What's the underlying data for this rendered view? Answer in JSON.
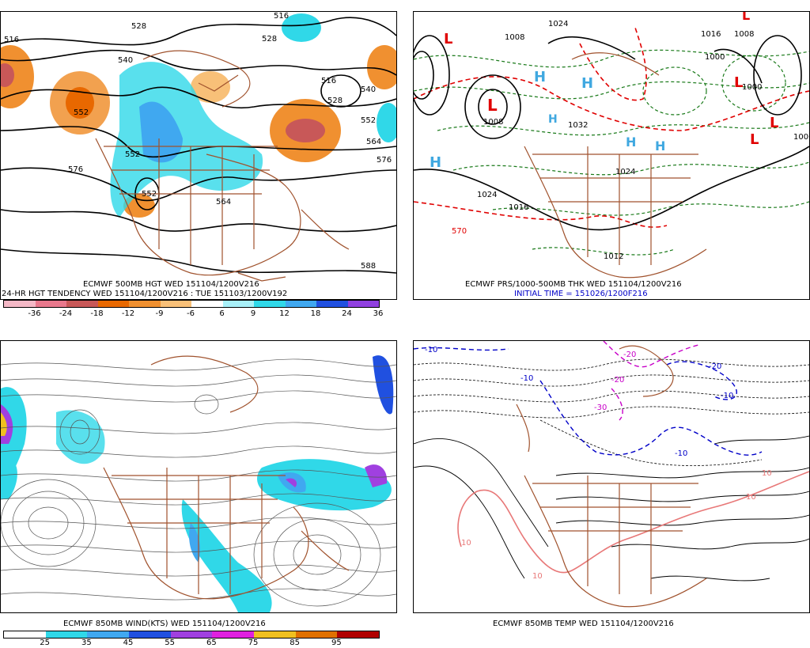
{
  "panels": [
    {
      "id": "hgt500",
      "caption1": "ECMWF 500MB HGT WED 151104/1200V216",
      "caption2": "24-HR HGT TENDENCY WED 151104/1200V216 : TUE 151103/1200V192",
      "contour_labels": [
        "516",
        "528",
        "516",
        "528",
        "540",
        "552",
        "516",
        "528",
        "540",
        "552",
        "564",
        "576",
        "576",
        "552",
        "588",
        "552",
        "564"
      ],
      "colorbar": {
        "colors": [
          "#f4b8c6",
          "#e8788c",
          "#c85858",
          "#e86800",
          "#f09030",
          "#f8c078",
          "#ffffff",
          "#a8f0f8",
          "#30d8e8",
          "#40a8f0",
          "#2050e0",
          "#9040e0"
        ],
        "ticks": [
          "-36",
          "-24",
          "-18",
          "-12",
          "-9",
          "-6",
          "6",
          "9",
          "12",
          "18",
          "24",
          "36"
        ]
      }
    },
    {
      "id": "prs_thk",
      "caption1": "ECMWF PRS/1000-500MB THK WED 151104/1200V216",
      "caption2": "INITIAL TIME = 151026/1200F216",
      "labels": [
        "L",
        "L",
        "L",
        "L",
        "L",
        "L",
        "H",
        "H",
        "H",
        "H",
        "H",
        "H",
        "1008",
        "1008",
        "1000",
        "1024",
        "1016",
        "1016",
        "1032",
        "1000",
        "1000",
        "1008",
        "570",
        "1024",
        "1024",
        "1012"
      ]
    },
    {
      "id": "wind850",
      "caption1": "ECMWF 850MB WIND(KTS) WED 151104/1200V216",
      "colorbar": {
        "colors": [
          "#ffffff",
          "#30d8e8",
          "#40a8f0",
          "#2050e0",
          "#a040e0",
          "#e020e0",
          "#f0c020",
          "#e07000",
          "#b00000"
        ],
        "ticks": [
          "25",
          "35",
          "45",
          "55",
          "65",
          "75",
          "85",
          "95"
        ]
      }
    },
    {
      "id": "temp850",
      "caption1": "ECMWF 850MB TEMP WED 151104/1200V216",
      "labels": [
        "-10",
        "-10",
        "-20",
        "-20",
        "-30",
        "-10",
        "-10",
        "-20",
        "10",
        "10",
        "10",
        "10"
      ]
    }
  ]
}
